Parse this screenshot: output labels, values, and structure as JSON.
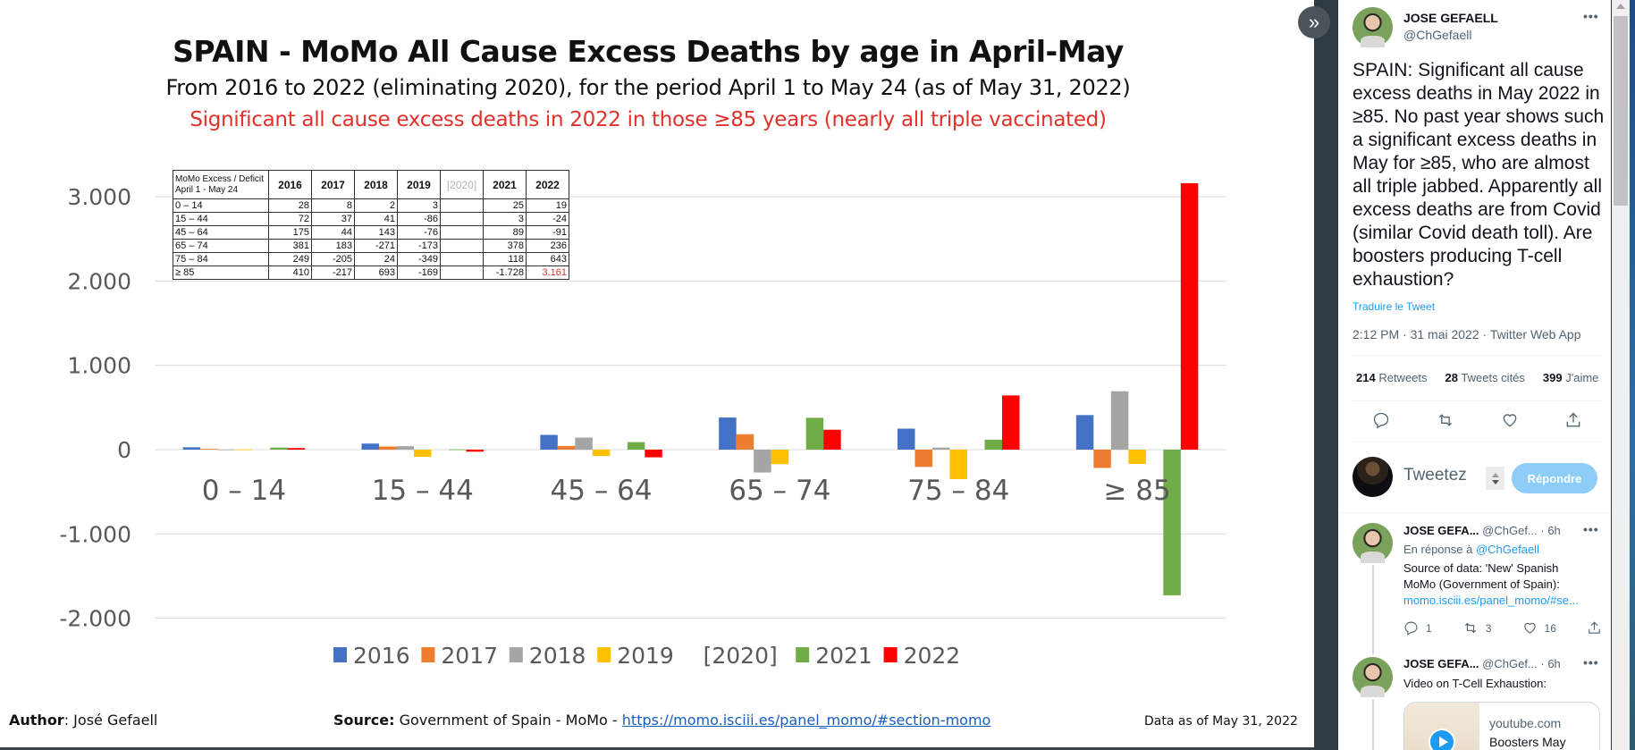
{
  "chart_data": {
    "type": "bar",
    "title": "SPAIN - MoMo All Cause Excess Deaths by age in April-May",
    "subtitle": "From 2016 to 2022 (eliminating 2020), for the period April 1 to May 24 (as of May 31, 2022)",
    "annotation": "Significant all cause excess deaths in 2022 in those ≥85 years (nearly all triple vaccinated)",
    "xlabel": "",
    "ylabel": "",
    "ylim": [
      -2000,
      3000
    ],
    "yticks": [
      3000,
      2000,
      1000,
      0,
      -1000,
      -2000
    ],
    "ytick_labels": [
      "3.000",
      "2.000",
      "1.000",
      "0",
      "-1.000",
      "-2.000"
    ],
    "grid": true,
    "legend_position": "bottom",
    "categories": [
      "0 – 14",
      "15 – 44",
      "45 – 64",
      "65 – 74",
      "75 – 84",
      "≥ 85"
    ],
    "series": [
      {
        "name": "2016",
        "color": "#4472c4",
        "values": [
          28,
          72,
          175,
          381,
          249,
          410
        ]
      },
      {
        "name": "2017",
        "color": "#ed7d31",
        "values": [
          8,
          37,
          44,
          183,
          -205,
          -217
        ]
      },
      {
        "name": "2018",
        "color": "#a5a5a5",
        "values": [
          2,
          41,
          143,
          -271,
          24,
          693
        ]
      },
      {
        "name": "2019",
        "color": "#ffc000",
        "values": [
          3,
          -86,
          -76,
          -173,
          -349,
          -169
        ]
      },
      {
        "name": "[2020]",
        "color": null,
        "values": [
          null,
          null,
          null,
          null,
          null,
          null
        ]
      },
      {
        "name": "2021",
        "color": "#70ad47",
        "values": [
          25,
          3,
          89,
          378,
          118,
          -1728
        ]
      },
      {
        "name": "2022",
        "color": "#ff0000",
        "values": [
          19,
          -24,
          -91,
          236,
          643,
          3161
        ]
      }
    ],
    "table": {
      "corner": [
        "MoMo Excess / Deficit",
        "April 1 - May 24"
      ],
      "columns": [
        "2016",
        "2017",
        "2018",
        "2019",
        "[2020]",
        "2021",
        "2022"
      ],
      "rows": [
        {
          "age": "0 – 14",
          "cells": [
            "28",
            "8",
            "2",
            "3",
            "",
            "25",
            "19"
          ]
        },
        {
          "age": "15 – 44",
          "cells": [
            "72",
            "37",
            "41",
            "-86",
            "",
            "3",
            "-24"
          ]
        },
        {
          "age": "45 – 64",
          "cells": [
            "175",
            "44",
            "143",
            "-76",
            "",
            "89",
            "-91"
          ]
        },
        {
          "age": "65 – 74",
          "cells": [
            "381",
            "183",
            "-271",
            "-173",
            "",
            "378",
            "236"
          ]
        },
        {
          "age": "75 – 84",
          "cells": [
            "249",
            "-205",
            "24",
            "-349",
            "",
            "118",
            "643"
          ]
        },
        {
          "age": "≥ 85",
          "cells": [
            "410",
            "-217",
            "693",
            "-169",
            "",
            "-1.728",
            "3.161"
          ]
        }
      ]
    }
  },
  "footer": {
    "author_label": "Author",
    "author_value": ": José Gefaell",
    "source_label": "Source:",
    "source_value": " Government of Spain - MoMo - ",
    "source_link": "https://momo.isciii.es/panel_momo/#section-momo",
    "date": "Data as of May 31, 2022"
  },
  "viewer": {
    "expand_icon": "»"
  },
  "tweet": {
    "name": "JOSE GEFAELL",
    "handle": "@ChGefaell",
    "more": "•••",
    "text": "SPAIN: Significant all cause excess deaths in May 2022 in ≥85. No past year shows such a significant excess deaths in May for ≥85, who are almost all triple jabbed. Apparently all excess deaths are from Covid (similar Covid death toll). Are boosters producing T-cell exhaustion?",
    "translate": "Traduire le Tweet",
    "meta": "2:12 PM · 31 mai 2022 · Twitter Web App",
    "stats": [
      {
        "count": "214",
        "label": "Retweets"
      },
      {
        "count": "28",
        "label": "Tweets cités"
      },
      {
        "count": "399",
        "label": "J'aime"
      }
    ]
  },
  "composer": {
    "placeholder": "Tweetez",
    "reply_button": "Répondre"
  },
  "replies": [
    {
      "name": "JOSE GEFA...",
      "handle": "@ChGef...",
      "time": "· 6h",
      "in_reply_prefix": "En réponse à ",
      "in_reply_to": "@ChGefaell",
      "lines": [
        "Source of data: 'New' Spanish",
        "MoMo (Government of Spain):"
      ],
      "link": "momo.isciii.es/panel_momo/#se...",
      "counts": {
        "reply": "1",
        "retweet": "3",
        "like": "16"
      }
    },
    {
      "name": "JOSE GEFA...",
      "handle": "@ChGef...",
      "time": "· 6h",
      "text": "Video on T-Cell Exhaustion:",
      "card_domain": "youtube.com",
      "card_title": "Boosters May"
    }
  ]
}
